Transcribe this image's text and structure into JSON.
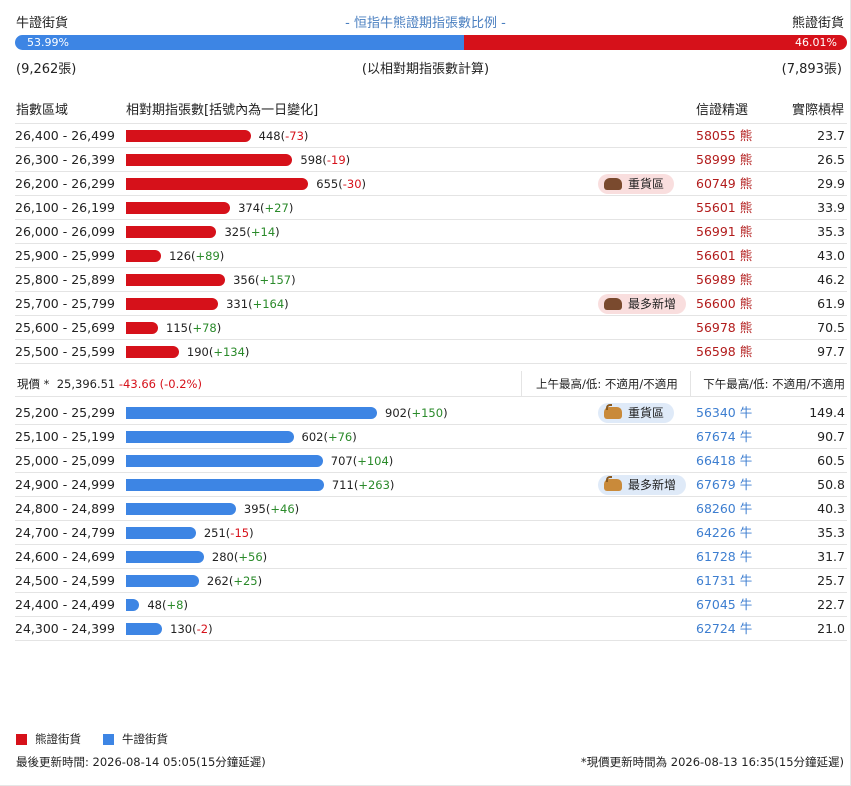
{
  "header": {
    "bull_label": "牛證街貨",
    "bear_label": "熊證街貨",
    "title": "- 恒指牛熊證期指張數比例 -"
  },
  "ratio": {
    "bull_pct_label": "53.99%",
    "bear_pct_label": "46.01%",
    "bull_pct": 53.99,
    "bear_pct": 46.01,
    "bull_count": "(9,262張)",
    "bear_count": "(7,893張)",
    "note": "(以相對期指張數計算)"
  },
  "columns": {
    "range": "指數區域",
    "contracts": "相對期指張數[括號內為一日變化]",
    "warrant": "信證精選",
    "leverage": "實際槓桿"
  },
  "colors": {
    "bear": "#d6111a",
    "bull": "#3d85e4"
  },
  "chart_data": {
    "type": "bar",
    "orientation": "horizontal",
    "series": [
      {
        "name": "熊證街貨",
        "categories": [
          "26,400 - 26,499",
          "26,300 - 26,399",
          "26,200 - 26,299",
          "26,100 - 26,199",
          "26,000 - 26,099",
          "25,900 - 25,999",
          "25,800 - 25,899",
          "25,700 - 25,799",
          "25,600 - 25,699",
          "25,500 - 25,599"
        ],
        "values": [
          448,
          598,
          655,
          374,
          325,
          126,
          356,
          331,
          115,
          190
        ],
        "changes": [
          "-73",
          "-19",
          "-30",
          "+27",
          "+14",
          "+89",
          "+157",
          "+164",
          "+78",
          "+134"
        ]
      },
      {
        "name": "牛證街貨",
        "categories": [
          "25,200 - 25,299",
          "25,100 - 25,199",
          "25,000 - 25,099",
          "24,900 - 24,999",
          "24,800 - 24,899",
          "24,700 - 24,799",
          "24,600 - 24,699",
          "24,500 - 24,599",
          "24,400 - 24,499",
          "24,300 - 24,399"
        ],
        "values": [
          902,
          602,
          707,
          711,
          395,
          251,
          280,
          262,
          48,
          130
        ],
        "changes": [
          "+150",
          "+76",
          "+104",
          "+263",
          "+46",
          "-15",
          "+56",
          "+25",
          "+8",
          "-2"
        ]
      }
    ],
    "xlim": [
      0,
      1100
    ]
  },
  "bear_rows": [
    {
      "range": "26,400 - 26,499",
      "value": "448",
      "change": "-73",
      "warrant": "58055 熊",
      "leverage": "23.7"
    },
    {
      "range": "26,300 - 26,399",
      "value": "598",
      "change": "-19",
      "warrant": "58999 熊",
      "leverage": "26.5"
    },
    {
      "range": "26,200 - 26,299",
      "value": "655",
      "change": "-30",
      "warrant": "60749 熊",
      "leverage": "29.9",
      "tag": "重貨區"
    },
    {
      "range": "26,100 - 26,199",
      "value": "374",
      "change": "+27",
      "warrant": "55601 熊",
      "leverage": "33.9"
    },
    {
      "range": "26,000 - 26,099",
      "value": "325",
      "change": "+14",
      "warrant": "56991 熊",
      "leverage": "35.3"
    },
    {
      "range": "25,900 - 25,999",
      "value": "126",
      "change": "+89",
      "warrant": "56601 熊",
      "leverage": "43.0"
    },
    {
      "range": "25,800 - 25,899",
      "value": "356",
      "change": "+157",
      "warrant": "56989 熊",
      "leverage": "46.2"
    },
    {
      "range": "25,700 - 25,799",
      "value": "331",
      "change": "+164",
      "warrant": "56600 熊",
      "leverage": "61.9",
      "tag": "最多新增"
    },
    {
      "range": "25,600 - 25,699",
      "value": "115",
      "change": "+78",
      "warrant": "56978 熊",
      "leverage": "70.5"
    },
    {
      "range": "25,500 - 25,599",
      "value": "190",
      "change": "+134",
      "warrant": "56598 熊",
      "leverage": "97.7"
    }
  ],
  "price": {
    "label": "現價 *",
    "value": "25,396.51",
    "change": "-43.66 (-0.2%)",
    "am": "上午最高/低: 不適用/不適用",
    "pm": "下午最高/低: 不適用/不適用"
  },
  "bull_rows": [
    {
      "range": "25,200 - 25,299",
      "value": "902",
      "change": "+150",
      "warrant": "56340 牛",
      "leverage": "149.4",
      "tag": "重貨區"
    },
    {
      "range": "25,100 - 25,199",
      "value": "602",
      "change": "+76",
      "warrant": "67674 牛",
      "leverage": "90.7"
    },
    {
      "range": "25,000 - 25,099",
      "value": "707",
      "change": "+104",
      "warrant": "66418 牛",
      "leverage": "60.5"
    },
    {
      "range": "24,900 - 24,999",
      "value": "711",
      "change": "+263",
      "warrant": "67679 牛",
      "leverage": "50.8",
      "tag": "最多新增"
    },
    {
      "range": "24,800 - 24,899",
      "value": "395",
      "change": "+46",
      "warrant": "68260 牛",
      "leverage": "40.3"
    },
    {
      "range": "24,700 - 24,799",
      "value": "251",
      "change": "-15",
      "warrant": "64226 牛",
      "leverage": "35.3"
    },
    {
      "range": "24,600 - 24,699",
      "value": "280",
      "change": "+56",
      "warrant": "61728 牛",
      "leverage": "31.7"
    },
    {
      "range": "24,500 - 24,599",
      "value": "262",
      "change": "+25",
      "warrant": "61731 牛",
      "leverage": "25.7"
    },
    {
      "range": "24,400 - 24,499",
      "value": "48",
      "change": "+8",
      "warrant": "67045 牛",
      "leverage": "22.7"
    },
    {
      "range": "24,300 - 24,399",
      "value": "130",
      "change": "-2",
      "warrant": "62724 牛",
      "leverage": "21.0"
    }
  ],
  "legend": {
    "bear": "熊證街貨",
    "bull": "牛證街貨"
  },
  "footer": {
    "last_update": "最後更新時間: 2026-08-14 05:05(15分鐘延遲)",
    "price_update": "*現價更新時間為 2026-08-13 16:35(15分鐘延遲)"
  }
}
